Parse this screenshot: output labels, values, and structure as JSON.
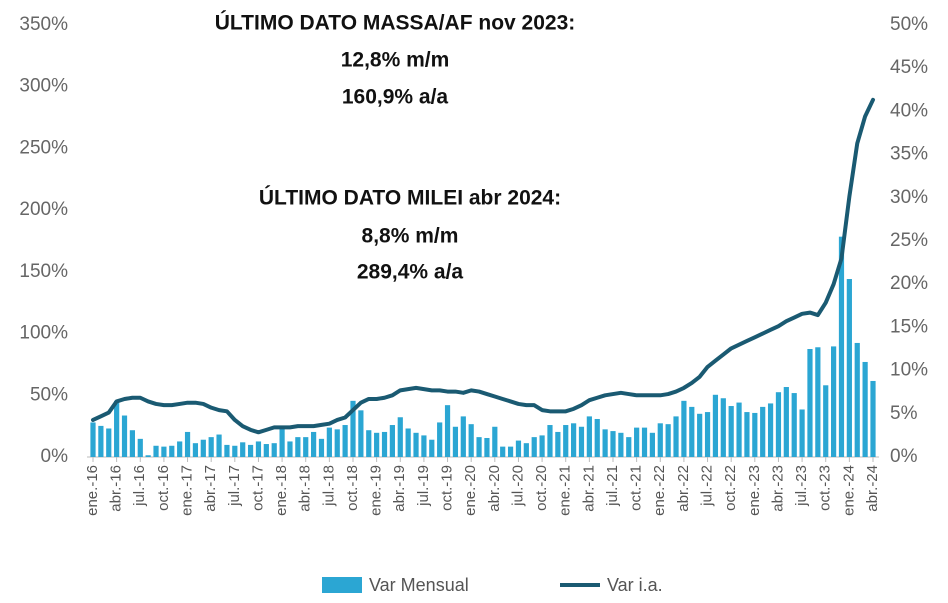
{
  "chart_data": {
    "type": "bar_line",
    "annotations": [
      {
        "lines": [
          "ÚLTIMO DATO MASSA/AF nov 2023:",
          "12,8% m/m",
          "160,9% a/a"
        ]
      },
      {
        "lines": [
          "ÚLTIMO DATO MILEI abr 2024:",
          "8,8% m/m",
          "289,4% a/a"
        ]
      }
    ],
    "categories": [
      "ene.-16",
      null,
      null,
      "abr.-16",
      null,
      null,
      "jul.-16",
      null,
      null,
      "oct.-16",
      null,
      null,
      "ene.-17",
      null,
      null,
      "abr.-17",
      null,
      null,
      "jul.-17",
      null,
      null,
      "oct.-17",
      null,
      null,
      "ene.-18",
      null,
      null,
      "abr.-18",
      null,
      null,
      "jul.-18",
      null,
      null,
      "oct.-18",
      null,
      null,
      "ene.-19",
      null,
      null,
      "abr.-19",
      null,
      null,
      "jul.-19",
      null,
      null,
      "oct.-19",
      null,
      null,
      "ene.-20",
      null,
      null,
      "abr.-20",
      null,
      null,
      "jul.-20",
      null,
      null,
      "oct.-20",
      null,
      null,
      "ene.-21",
      null,
      null,
      "abr.-21",
      null,
      null,
      "jul.-21",
      null,
      null,
      "oct.-21",
      null,
      null,
      "ene.-22",
      null,
      null,
      "abr.-22",
      null,
      null,
      "jul.-22",
      null,
      null,
      "oct.-22",
      null,
      null,
      "ene.-23",
      null,
      null,
      "abr.-23",
      null,
      null,
      "jul.-23",
      null,
      null,
      "oct.-23",
      null,
      null,
      "ene.-24",
      null,
      null,
      "abr.-24"
    ],
    "series": [
      {
        "name": "Var Mensual",
        "type": "bar",
        "axis": "y2",
        "color": "#2ba6d3",
        "values": [
          4.0,
          3.6,
          3.3,
          6.5,
          4.8,
          3.1,
          2.1,
          0.2,
          1.3,
          1.2,
          1.3,
          1.8,
          2.9,
          1.6,
          2.0,
          2.3,
          2.6,
          1.4,
          1.3,
          1.7,
          1.4,
          1.8,
          1.5,
          1.6,
          3.5,
          1.8,
          2.3,
          2.3,
          2.9,
          2.1,
          3.4,
          3.2,
          3.7,
          6.5,
          5.4,
          3.1,
          2.8,
          2.9,
          3.7,
          4.6,
          3.3,
          2.8,
          2.5,
          2.0,
          4.0,
          6.0,
          3.5,
          4.7,
          3.8,
          2.3,
          2.2,
          3.5,
          1.2,
          1.2,
          1.9,
          1.6,
          2.3,
          2.5,
          3.7,
          2.9,
          3.7,
          3.9,
          3.5,
          4.7,
          4.4,
          3.2,
          3.0,
          2.8,
          2.3,
          3.4,
          3.4,
          2.8,
          3.9,
          3.8,
          4.7,
          6.5,
          5.8,
          5.0,
          5.2,
          7.2,
          6.8,
          5.9,
          6.3,
          5.2,
          5.1,
          5.8,
          6.2,
          7.5,
          8.1,
          7.4,
          5.5,
          12.5,
          12.7,
          8.3,
          12.8,
          25.5,
          20.6,
          13.2,
          11.0,
          8.8
        ]
      },
      {
        "name": "Var i.a.",
        "type": "line",
        "axis": "y",
        "color": "#1a5a72",
        "values": [
          30,
          33,
          36,
          45,
          47,
          48,
          48,
          45,
          43,
          42,
          42,
          43,
          44,
          44,
          43,
          40,
          38,
          37,
          30,
          25,
          22,
          20,
          22,
          24,
          24,
          24,
          25,
          25,
          25,
          26,
          27,
          30,
          32,
          38,
          44,
          47,
          47,
          48,
          50,
          54,
          55,
          56,
          55,
          54,
          54,
          53,
          53,
          52,
          54,
          53,
          51,
          49,
          47,
          45,
          43,
          42,
          42,
          38,
          37,
          37,
          37,
          39,
          42,
          46,
          48,
          50,
          51,
          52,
          51,
          50,
          50,
          50,
          50,
          51,
          53,
          56,
          60,
          65,
          73,
          78,
          83,
          88,
          91,
          94,
          97,
          100,
          103,
          106,
          110,
          113,
          116,
          117,
          115,
          125,
          140,
          160.9,
          211,
          254,
          276,
          289.4
        ]
      }
    ],
    "ylim": [
      0,
      350
    ],
    "yticks": [
      {
        "value": 0,
        "label": "0%"
      },
      {
        "value": 50,
        "label": "50%"
      },
      {
        "value": 100,
        "label": "100%"
      },
      {
        "value": 150,
        "label": "150%"
      },
      {
        "value": 200,
        "label": "200%"
      },
      {
        "value": 250,
        "label": "250%"
      },
      {
        "value": 300,
        "label": "300%"
      },
      {
        "value": 350,
        "label": "350%"
      }
    ],
    "y2lim": [
      0,
      50
    ],
    "y2ticks": [
      {
        "value": 0,
        "label": "0%"
      },
      {
        "value": 5,
        "label": "5%"
      },
      {
        "value": 10,
        "label": "10%"
      },
      {
        "value": 15,
        "label": "15%"
      },
      {
        "value": 20,
        "label": "20%"
      },
      {
        "value": 25,
        "label": "25%"
      },
      {
        "value": 30,
        "label": "30%"
      },
      {
        "value": 35,
        "label": "35%"
      },
      {
        "value": 40,
        "label": "40%"
      },
      {
        "value": 45,
        "label": "45%"
      },
      {
        "value": 50,
        "label": "50%"
      }
    ],
    "legend": "bottom"
  }
}
